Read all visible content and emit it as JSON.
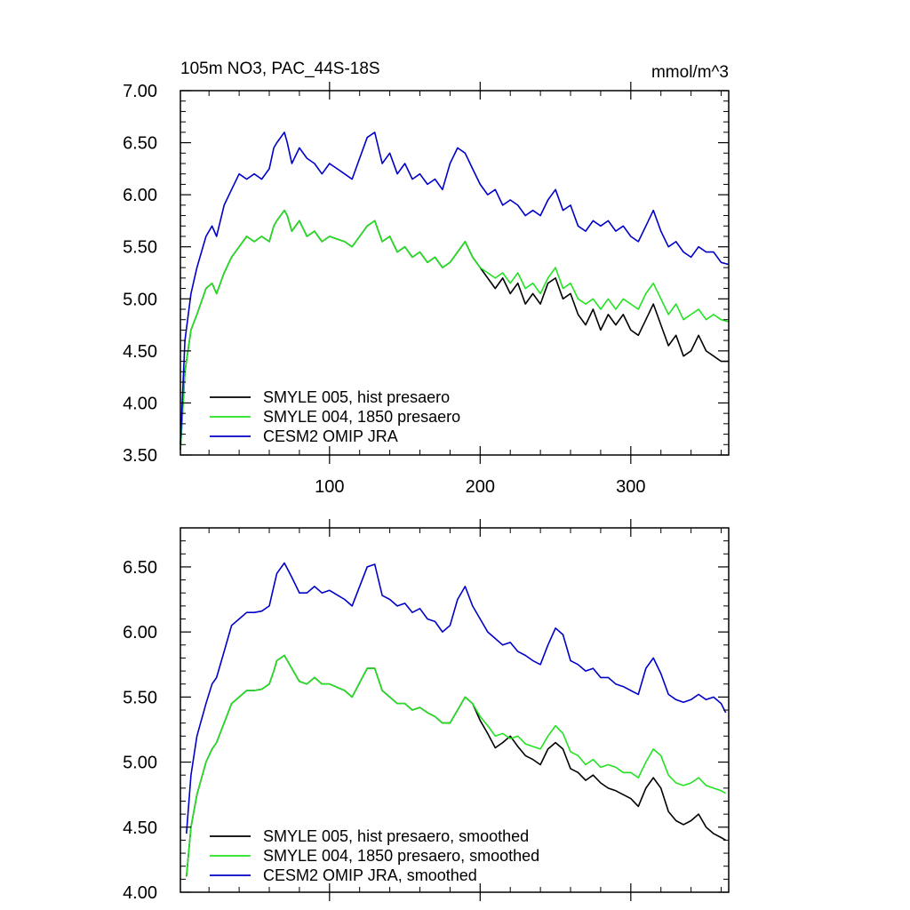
{
  "chart_data": [
    {
      "type": "line",
      "title": "105m NO3, PAC_44S-18S",
      "units": "mmol/m^3",
      "xlabel": "",
      "ylabel": "",
      "xlim": [
        1,
        365
      ],
      "ylim": [
        3.5,
        7.0
      ],
      "x_ticks": [
        100,
        200,
        300
      ],
      "x_tick_labels": [
        "100",
        "200",
        "300"
      ],
      "y_ticks": [
        3.5,
        4.0,
        4.5,
        5.0,
        5.5,
        6.0,
        6.5,
        7.0
      ],
      "y_tick_labels": [
        "3.50",
        "4.00",
        "4.50",
        "5.00",
        "5.50",
        "6.00",
        "6.50",
        "7.00"
      ],
      "grid": false,
      "legend_position": "bottom-left",
      "series": [
        {
          "name": "SMYLE 005, hist presaero",
          "color": "#000000",
          "x": [
            1,
            4,
            8,
            12,
            18,
            22,
            25,
            30,
            35,
            40,
            45,
            50,
            55,
            60,
            63,
            65,
            70,
            72,
            75,
            80,
            85,
            90,
            95,
            100,
            110,
            115,
            125,
            130,
            135,
            140,
            145,
            150,
            155,
            160,
            165,
            170,
            175,
            180,
            185,
            190,
            195,
            200,
            205,
            210,
            215,
            220,
            225,
            230,
            235,
            240,
            245,
            250,
            255,
            260,
            265,
            270,
            275,
            280,
            285,
            290,
            295,
            300,
            305,
            310,
            315,
            320,
            325,
            330,
            335,
            340,
            345,
            350,
            355,
            360,
            365
          ],
          "values": [
            3.55,
            4.3,
            4.7,
            4.85,
            5.1,
            5.15,
            5.05,
            5.25,
            5.4,
            5.5,
            5.6,
            5.55,
            5.6,
            5.55,
            5.7,
            5.75,
            5.85,
            5.8,
            5.65,
            5.75,
            5.6,
            5.65,
            5.55,
            5.6,
            5.55,
            5.5,
            5.7,
            5.75,
            5.55,
            5.6,
            5.45,
            5.5,
            5.4,
            5.45,
            5.35,
            5.4,
            5.3,
            5.35,
            5.45,
            5.55,
            5.4,
            5.3,
            5.2,
            5.1,
            5.2,
            5.05,
            5.15,
            4.95,
            5.05,
            4.95,
            5.15,
            5.2,
            5.0,
            5.05,
            4.85,
            4.75,
            4.9,
            4.7,
            4.85,
            4.75,
            4.85,
            4.7,
            4.65,
            4.8,
            4.95,
            4.75,
            4.55,
            4.65,
            4.45,
            4.5,
            4.65,
            4.5,
            4.45,
            4.4,
            4.4
          ]
        },
        {
          "name": "SMYLE 004, 1850 presaero",
          "color": "#22e222",
          "x": [
            1,
            4,
            8,
            12,
            18,
            22,
            25,
            30,
            35,
            40,
            45,
            50,
            55,
            60,
            63,
            65,
            70,
            72,
            75,
            80,
            85,
            90,
            95,
            100,
            110,
            115,
            125,
            130,
            135,
            140,
            145,
            150,
            155,
            160,
            165,
            170,
            175,
            180,
            185,
            190,
            195,
            200,
            205,
            210,
            215,
            220,
            225,
            230,
            235,
            240,
            245,
            250,
            255,
            260,
            265,
            270,
            275,
            280,
            285,
            290,
            295,
            300,
            305,
            310,
            315,
            320,
            325,
            330,
            335,
            340,
            345,
            350,
            355,
            360,
            365
          ],
          "values": [
            3.55,
            4.3,
            4.7,
            4.85,
            5.1,
            5.15,
            5.05,
            5.25,
            5.4,
            5.5,
            5.6,
            5.55,
            5.6,
            5.55,
            5.7,
            5.75,
            5.85,
            5.8,
            5.65,
            5.75,
            5.6,
            5.65,
            5.55,
            5.6,
            5.55,
            5.5,
            5.7,
            5.75,
            5.55,
            5.6,
            5.45,
            5.5,
            5.4,
            5.45,
            5.35,
            5.4,
            5.3,
            5.35,
            5.45,
            5.55,
            5.4,
            5.3,
            5.25,
            5.2,
            5.25,
            5.15,
            5.25,
            5.1,
            5.15,
            5.05,
            5.2,
            5.3,
            5.1,
            5.15,
            5.0,
            4.95,
            5.0,
            4.9,
            5.0,
            4.9,
            5.0,
            4.95,
            4.9,
            5.05,
            5.15,
            5.0,
            4.85,
            4.95,
            4.8,
            4.85,
            4.9,
            4.8,
            4.85,
            4.8,
            4.78
          ]
        },
        {
          "name": "CESM2 OMIP JRA",
          "color": "#0000c8",
          "x": [
            1,
            4,
            8,
            12,
            18,
            22,
            25,
            30,
            35,
            40,
            45,
            50,
            55,
            60,
            63,
            65,
            70,
            72,
            75,
            80,
            85,
            90,
            95,
            100,
            110,
            115,
            125,
            130,
            135,
            140,
            145,
            150,
            155,
            160,
            165,
            170,
            175,
            180,
            185,
            190,
            195,
            200,
            205,
            210,
            215,
            220,
            225,
            230,
            235,
            240,
            245,
            250,
            255,
            260,
            265,
            270,
            275,
            280,
            285,
            290,
            295,
            300,
            305,
            310,
            315,
            320,
            325,
            330,
            335,
            340,
            345,
            350,
            355,
            360,
            365
          ],
          "values": [
            3.6,
            4.6,
            5.05,
            5.3,
            5.6,
            5.7,
            5.6,
            5.9,
            6.05,
            6.2,
            6.15,
            6.2,
            6.15,
            6.25,
            6.45,
            6.5,
            6.6,
            6.5,
            6.3,
            6.45,
            6.35,
            6.3,
            6.2,
            6.3,
            6.2,
            6.15,
            6.55,
            6.6,
            6.3,
            6.4,
            6.2,
            6.3,
            6.15,
            6.2,
            6.1,
            6.15,
            6.05,
            6.3,
            6.45,
            6.4,
            6.25,
            6.1,
            6.0,
            6.05,
            5.9,
            5.95,
            5.9,
            5.8,
            5.85,
            5.8,
            5.95,
            6.05,
            5.85,
            5.9,
            5.7,
            5.65,
            5.75,
            5.7,
            5.75,
            5.65,
            5.7,
            5.6,
            5.55,
            5.7,
            5.85,
            5.65,
            5.5,
            5.55,
            5.45,
            5.4,
            5.5,
            5.45,
            5.45,
            5.35,
            5.33
          ]
        }
      ]
    },
    {
      "type": "line",
      "title": "",
      "xlabel": "",
      "ylabel": "",
      "xlim": [
        1,
        365
      ],
      "ylim": [
        4.0,
        6.8
      ],
      "x_ticks": [
        100,
        200,
        300
      ],
      "x_tick_labels": [],
      "y_ticks": [
        4.0,
        4.5,
        5.0,
        5.5,
        6.0,
        6.5
      ],
      "y_tick_labels": [
        "4.00",
        "4.50",
        "5.00",
        "5.50",
        "6.00",
        "6.50"
      ],
      "grid": false,
      "legend_position": "bottom-left",
      "series": [
        {
          "name": "SMYLE 005, hist presaero, smoothed",
          "color": "#000000",
          "x": [
            5,
            8,
            12,
            18,
            22,
            25,
            30,
            35,
            40,
            45,
            50,
            55,
            60,
            63,
            65,
            70,
            75,
            80,
            85,
            90,
            95,
            100,
            110,
            115,
            125,
            130,
            135,
            140,
            145,
            150,
            155,
            160,
            165,
            170,
            175,
            180,
            185,
            190,
            195,
            200,
            205,
            210,
            215,
            220,
            225,
            230,
            235,
            240,
            245,
            250,
            255,
            260,
            265,
            270,
            275,
            280,
            285,
            290,
            295,
            300,
            305,
            310,
            315,
            320,
            325,
            330,
            335,
            340,
            345,
            350,
            355,
            360,
            363
          ],
          "values": [
            4.12,
            4.5,
            4.75,
            5.0,
            5.1,
            5.15,
            5.3,
            5.45,
            5.5,
            5.55,
            5.55,
            5.56,
            5.6,
            5.7,
            5.78,
            5.82,
            5.72,
            5.62,
            5.6,
            5.65,
            5.6,
            5.6,
            5.55,
            5.5,
            5.72,
            5.72,
            5.55,
            5.5,
            5.45,
            5.45,
            5.4,
            5.42,
            5.38,
            5.35,
            5.3,
            5.3,
            5.4,
            5.5,
            5.45,
            5.32,
            5.22,
            5.11,
            5.15,
            5.2,
            5.12,
            5.05,
            5.02,
            4.98,
            5.1,
            5.15,
            5.1,
            4.95,
            4.92,
            4.86,
            4.9,
            4.84,
            4.8,
            4.78,
            4.75,
            4.72,
            4.66,
            4.8,
            4.88,
            4.8,
            4.62,
            4.55,
            4.52,
            4.55,
            4.6,
            4.5,
            4.45,
            4.42,
            4.4
          ]
        },
        {
          "name": "SMYLE 004, 1850 presaero, smoothed",
          "color": "#22e222",
          "x": [
            5,
            8,
            12,
            18,
            22,
            25,
            30,
            35,
            40,
            45,
            50,
            55,
            60,
            63,
            65,
            70,
            75,
            80,
            85,
            90,
            95,
            100,
            110,
            115,
            125,
            130,
            135,
            140,
            145,
            150,
            155,
            160,
            165,
            170,
            175,
            180,
            185,
            190,
            195,
            200,
            205,
            210,
            215,
            220,
            225,
            230,
            235,
            240,
            245,
            250,
            255,
            260,
            265,
            270,
            275,
            280,
            285,
            290,
            295,
            300,
            305,
            310,
            315,
            320,
            325,
            330,
            335,
            340,
            345,
            350,
            355,
            360,
            363
          ],
          "values": [
            4.12,
            4.5,
            4.75,
            5.0,
            5.1,
            5.15,
            5.3,
            5.45,
            5.5,
            5.55,
            5.55,
            5.56,
            5.6,
            5.7,
            5.78,
            5.82,
            5.72,
            5.62,
            5.6,
            5.65,
            5.6,
            5.6,
            5.55,
            5.5,
            5.72,
            5.72,
            5.55,
            5.5,
            5.45,
            5.45,
            5.4,
            5.42,
            5.38,
            5.35,
            5.3,
            5.3,
            5.4,
            5.5,
            5.45,
            5.35,
            5.28,
            5.2,
            5.22,
            5.18,
            5.2,
            5.14,
            5.12,
            5.1,
            5.2,
            5.28,
            5.22,
            5.08,
            5.05,
            4.98,
            5.02,
            4.96,
            4.98,
            4.96,
            4.92,
            4.92,
            4.88,
            5.0,
            5.1,
            5.05,
            4.9,
            4.84,
            4.82,
            4.84,
            4.88,
            4.82,
            4.8,
            4.78,
            4.76
          ]
        },
        {
          "name": "CESM2 OMIP JRA, smoothed",
          "color": "#0000c8",
          "x": [
            5,
            8,
            12,
            18,
            22,
            25,
            30,
            35,
            40,
            45,
            50,
            55,
            60,
            63,
            65,
            70,
            75,
            80,
            85,
            90,
            95,
            100,
            110,
            115,
            125,
            130,
            135,
            140,
            145,
            150,
            155,
            160,
            165,
            170,
            175,
            180,
            185,
            190,
            195,
            200,
            205,
            210,
            215,
            220,
            225,
            230,
            235,
            240,
            245,
            250,
            255,
            260,
            265,
            270,
            275,
            280,
            285,
            290,
            295,
            300,
            305,
            310,
            315,
            320,
            325,
            330,
            335,
            340,
            345,
            350,
            355,
            360,
            363
          ],
          "values": [
            4.45,
            4.9,
            5.2,
            5.45,
            5.6,
            5.65,
            5.85,
            6.05,
            6.1,
            6.15,
            6.15,
            6.16,
            6.2,
            6.35,
            6.45,
            6.53,
            6.42,
            6.3,
            6.3,
            6.35,
            6.3,
            6.32,
            6.25,
            6.2,
            6.5,
            6.52,
            6.28,
            6.25,
            6.2,
            6.22,
            6.15,
            6.18,
            6.1,
            6.08,
            6.0,
            6.05,
            6.25,
            6.35,
            6.2,
            6.1,
            6.0,
            5.95,
            5.9,
            5.92,
            5.85,
            5.82,
            5.78,
            5.75,
            5.9,
            6.03,
            5.98,
            5.78,
            5.75,
            5.7,
            5.72,
            5.65,
            5.65,
            5.6,
            5.58,
            5.55,
            5.52,
            5.72,
            5.8,
            5.68,
            5.52,
            5.48,
            5.46,
            5.48,
            5.52,
            5.48,
            5.5,
            5.45,
            5.38
          ]
        }
      ]
    }
  ]
}
